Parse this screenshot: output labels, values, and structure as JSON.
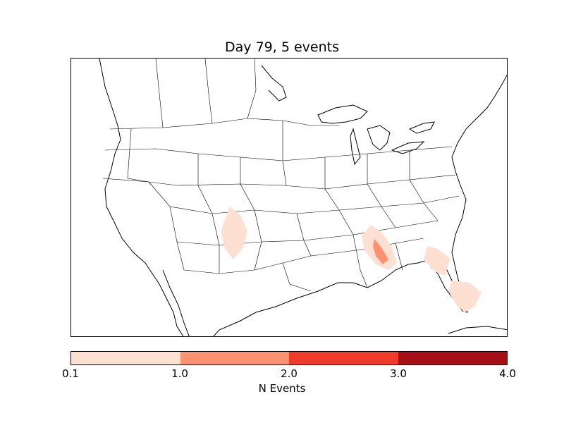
{
  "title": "Day 79, 5 events",
  "colorbar": {
    "label": "N Events",
    "ticks": [
      "0.1",
      "1.0",
      "2.0",
      "3.0",
      "4.0"
    ],
    "colors": [
      "#fee0d2",
      "#fc9272",
      "#ef3b2c",
      "#a50f15"
    ]
  },
  "chart_data": {
    "type": "heatmap",
    "title": "Day 79, 5 events",
    "colorbar_label": "N Events",
    "levels": [
      0.1,
      1.0,
      2.0,
      3.0,
      4.0
    ],
    "regions": [
      {
        "area": "New Mexico / Colorado border",
        "level": "0.1-1.0"
      },
      {
        "area": "Mississippi / Alabama",
        "level": "0.1-1.0"
      },
      {
        "area": "Alabama (central)",
        "level": "1.0-2.0"
      },
      {
        "area": "North Florida",
        "level": "0.1-1.0"
      },
      {
        "area": "South Florida",
        "level": "0.1-1.0"
      }
    ]
  }
}
